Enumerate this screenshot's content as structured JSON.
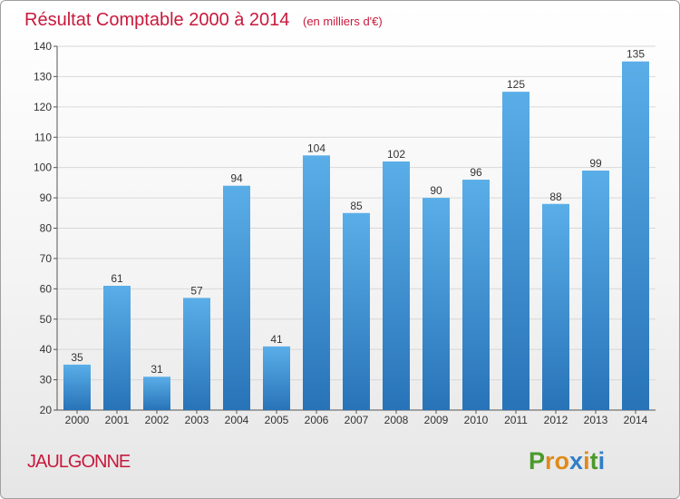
{
  "chart_data": {
    "type": "bar",
    "title": "Résultat Comptable 2000 à 2014",
    "subtitle": "(en milliers d'€)",
    "categories": [
      "2000",
      "2001",
      "2002",
      "2003",
      "2004",
      "2005",
      "2006",
      "2007",
      "2008",
      "2009",
      "2010",
      "2011",
      "2012",
      "2013",
      "2014"
    ],
    "values": [
      35,
      61,
      31,
      57,
      94,
      41,
      104,
      85,
      102,
      90,
      96,
      125,
      88,
      99,
      135
    ],
    "ylim": [
      20,
      140
    ],
    "yticks": [
      20,
      30,
      40,
      50,
      60,
      70,
      80,
      90,
      100,
      110,
      120,
      130,
      140
    ],
    "grid": true,
    "xlabel": "",
    "ylabel": ""
  },
  "commune": "JAULGONNE",
  "logo": {
    "letters": [
      "P",
      "r",
      "o",
      "x",
      "i",
      "t",
      "i"
    ]
  },
  "colors": {
    "bar_top": "#5aaee8",
    "bar_bottom": "#2873b8",
    "title": "#c8193c",
    "grid": "#d8d8d8",
    "logo": [
      "#4a9a2c",
      "#e08a1a",
      "#e08a1a",
      "#2f7fc8",
      "#e08a1a",
      "#4a9a2c",
      "#2f7fc8"
    ]
  }
}
